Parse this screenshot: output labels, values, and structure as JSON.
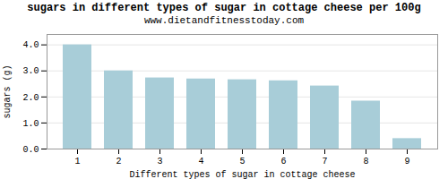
{
  "chart_data": {
    "type": "bar",
    "title": "sugars in different types of sugar in cottage cheese per 100g",
    "subtitle": "www.dietandfitnesstoday.com",
    "xlabel": "Different types of sugar in cottage cheese",
    "ylabel": "sugars (g)",
    "categories": [
      1,
      2,
      3,
      4,
      5,
      6,
      7,
      8,
      9
    ],
    "values": [
      4.0,
      3.0,
      2.73,
      2.69,
      2.66,
      2.62,
      2.42,
      1.84,
      0.4
    ],
    "color": "#a8cdd8",
    "ylim": [
      0,
      4.4
    ],
    "yticks": [
      {
        "value": 0.0,
        "label": "0.0"
      },
      {
        "value": 1.0,
        "label": "1.0"
      },
      {
        "value": 2.0,
        "label": "2.0"
      },
      {
        "value": 3.0,
        "label": "3.0"
      },
      {
        "value": 4.0,
        "label": "4.0"
      }
    ],
    "grid": true
  }
}
